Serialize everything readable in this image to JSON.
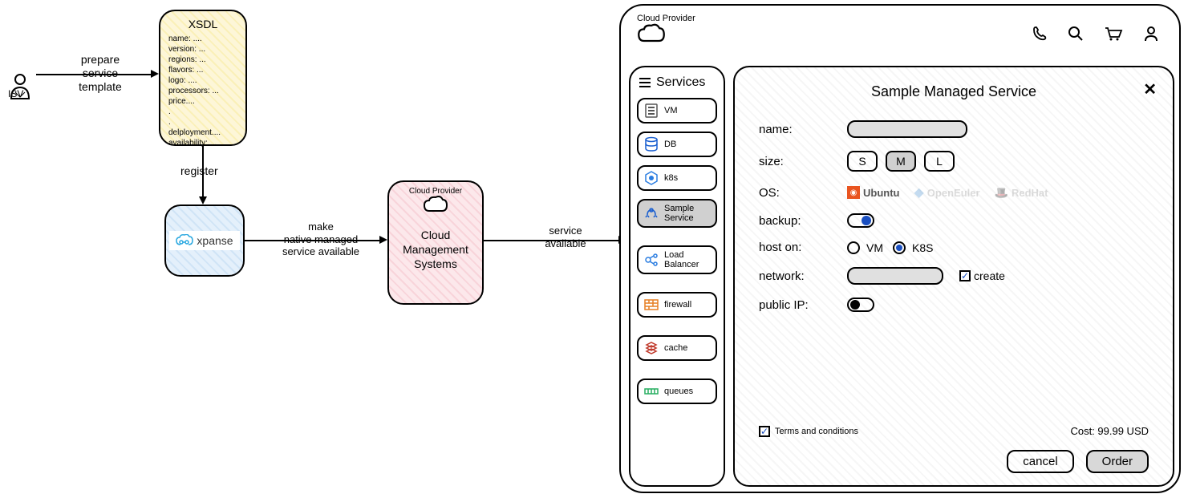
{
  "isv": {
    "label": "ISV"
  },
  "arrows": {
    "prepare": "prepare\nservice\ntemplate",
    "register": "register",
    "make_available": "make\nnative managed\nservice available",
    "service_available": "service\navailable"
  },
  "xsdl": {
    "title": "XSDL",
    "lines": "name: ....\nversion: ...\nregions: ...\nflavors: ...\nlogo: ....\nprocessors: ...\nprice....\n.\n.\ndelployment....\navailability:...."
  },
  "xpanse": {
    "label": "xpanse"
  },
  "cms": {
    "header": "Cloud Provider",
    "label": "Cloud\nManagement\nSystems"
  },
  "cloud_provider": {
    "header": "Cloud Provider",
    "services_title": "Services",
    "services": [
      {
        "name": "vm",
        "label": "VM",
        "color": "#555555"
      },
      {
        "name": "db",
        "label": "DB",
        "color": "#1a5fd0"
      },
      {
        "name": "k8s",
        "label": "k8s",
        "color": "#2a7de1"
      },
      {
        "name": "sample",
        "label": "Sample\nService",
        "color": "#1a5fd0",
        "selected": true
      },
      {
        "name": "lb",
        "label": "Load\nBalancer",
        "color": "#2a7de1"
      },
      {
        "name": "firewall",
        "label": "firewall",
        "color": "#e67e22"
      },
      {
        "name": "cache",
        "label": "cache",
        "color": "#c0392b"
      },
      {
        "name": "queues",
        "label": "queues",
        "color": "#27ae60"
      }
    ],
    "form": {
      "title": "Sample Managed Service",
      "name_label": "name:",
      "size_label": "size:",
      "sizes": [
        "S",
        "M",
        "L"
      ],
      "size_selected": "M",
      "os_label": "OS:",
      "os_options": [
        {
          "name": "Ubuntu",
          "color": "#e95420",
          "selected": true
        },
        {
          "name": "OpenEuler",
          "color": "#5a9bd5",
          "selected": false
        },
        {
          "name": "RedHat",
          "color": "#cc0000",
          "selected": false
        }
      ],
      "backup_label": "backup:",
      "backup_on": true,
      "hoston_label": "host on:",
      "hoston_options": [
        "VM",
        "K8S"
      ],
      "hoston_selected": "K8S",
      "network_label": "network:",
      "network_create": "create",
      "publicip_label": "public IP:",
      "publicip_on": false,
      "terms": "Terms and conditions",
      "cost_label": "Cost: 99.99 USD",
      "cancel": "cancel",
      "order": "Order"
    }
  }
}
